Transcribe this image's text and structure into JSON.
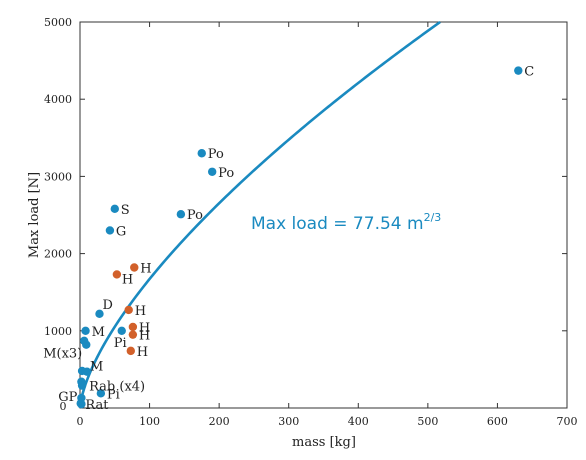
{
  "chart_data": {
    "type": "scatter",
    "xlabel": "mass [kg]",
    "ylabel": "Max load [N]",
    "xlim": [
      0,
      700
    ],
    "ylim": [
      0,
      5000
    ],
    "xticks": [
      0,
      100,
      200,
      300,
      400,
      500,
      600,
      700
    ],
    "yticks": [
      1000,
      2000,
      3000,
      4000,
      5000
    ],
    "origin_label": "0",
    "grid": false,
    "colors": {
      "blue": "#1a8ac0",
      "orange": "#d2602a",
      "axis": "#333333"
    },
    "fit": {
      "label_main": "Max load = 77.54 m",
      "label_exp": "2/3",
      "coefficient": 77.54,
      "exponent": 0.6667,
      "color": "#1a8ac0"
    },
    "series": [
      {
        "color": "#1a8ac0",
        "points": [
          {
            "x": 630,
            "y": 4370,
            "label": "C"
          },
          {
            "x": 175,
            "y": 3300,
            "label": "Po"
          },
          {
            "x": 190,
            "y": 3060,
            "label": "Po"
          },
          {
            "x": 145,
            "y": 2510,
            "label": "Po"
          },
          {
            "x": 50,
            "y": 2580,
            "label": "S"
          },
          {
            "x": 43,
            "y": 2300,
            "label": "G"
          },
          {
            "x": 28,
            "y": 1220,
            "label": "D"
          },
          {
            "x": 8,
            "y": 1000,
            "label": "M"
          },
          {
            "x": 6,
            "y": 870,
            "label": ""
          },
          {
            "x": 9,
            "y": 820,
            "label": "M(x3)"
          },
          {
            "x": 60,
            "y": 1000,
            "label": "Pi"
          },
          {
            "x": 3,
            "y": 480,
            "label": ""
          },
          {
            "x": 10,
            "y": 470,
            "label": "M"
          },
          {
            "x": 2,
            "y": 340,
            "label": ""
          },
          {
            "x": 3,
            "y": 290,
            "label": "Rab (x4)"
          },
          {
            "x": 30,
            "y": 190,
            "label": "Pi"
          },
          {
            "x": 2,
            "y": 130,
            "label": "GP"
          },
          {
            "x": 1,
            "y": 60,
            "label": ""
          },
          {
            "x": 2,
            "y": 50,
            "label": "Rat"
          }
        ]
      },
      {
        "color": "#d2602a",
        "points": [
          {
            "x": 78,
            "y": 1820,
            "label": "H"
          },
          {
            "x": 53,
            "y": 1730,
            "label": "H"
          },
          {
            "x": 70,
            "y": 1270,
            "label": "H"
          },
          {
            "x": 76,
            "y": 1050,
            "label": "H"
          },
          {
            "x": 76,
            "y": 950,
            "label": "H"
          },
          {
            "x": 73,
            "y": 740,
            "label": "H"
          }
        ]
      }
    ]
  }
}
